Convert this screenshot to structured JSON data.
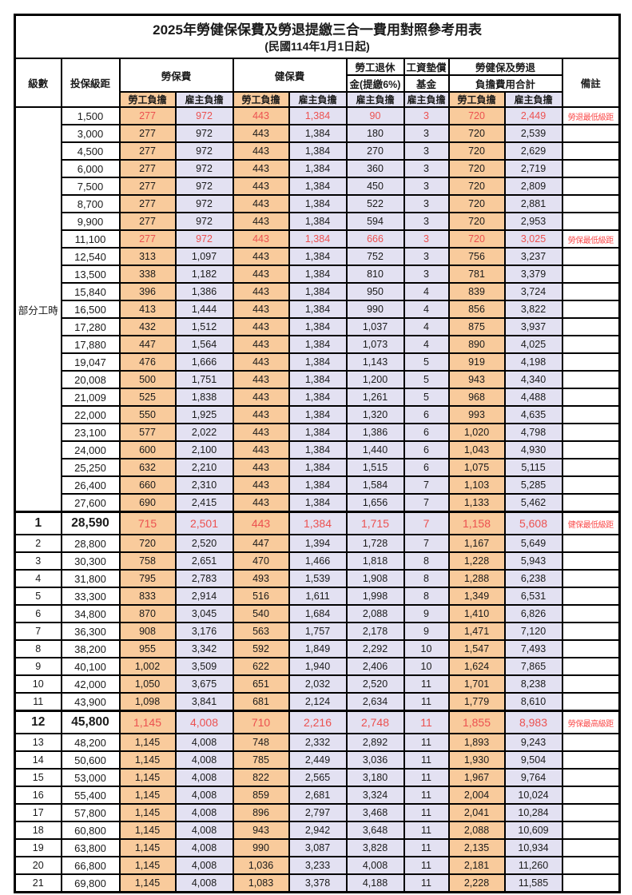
{
  "title": "2025年勞健保保費及勞退提繳三合一費用對照參考用表",
  "subtitle": "(民國114年1月1日起)",
  "part_time_label": "部分工時",
  "columns": {
    "level": "級數",
    "bracket": "投保級距",
    "labor_ins": "勞保費",
    "health_ins": "健保費",
    "pension_line1": "勞工退休",
    "pension_line2": "金(提繳6%)",
    "wage_fund_line1": "工資墊償",
    "wage_fund_line2": "基金",
    "total_line1": "勞健保及勞退",
    "total_line2": "負擔費用合計",
    "remark": "備註",
    "employee": "勞工負擔",
    "employer": "雇主負擔"
  },
  "colors": {
    "employee_bg": "#F9CB9C",
    "employer_bg": "#E3E1F2",
    "highlight_red": "#EC5150",
    "remark_red": "#FA4B4B",
    "border": "#000000"
  },
  "rows": [
    {
      "level": "",
      "bracket": "1,500",
      "v": [
        "277",
        "972",
        "443",
        "1,384",
        "90",
        "3",
        "720",
        "2,449"
      ],
      "remark": "勞退最低級距",
      "red": true,
      "big": false
    },
    {
      "level": "",
      "bracket": "3,000",
      "v": [
        "277",
        "972",
        "443",
        "1,384",
        "180",
        "3",
        "720",
        "2,539"
      ],
      "remark": "",
      "red": false,
      "big": false
    },
    {
      "level": "",
      "bracket": "4,500",
      "v": [
        "277",
        "972",
        "443",
        "1,384",
        "270",
        "3",
        "720",
        "2,629"
      ],
      "remark": "",
      "red": false,
      "big": false
    },
    {
      "level": "",
      "bracket": "6,000",
      "v": [
        "277",
        "972",
        "443",
        "1,384",
        "360",
        "3",
        "720",
        "2,719"
      ],
      "remark": "",
      "red": false,
      "big": false
    },
    {
      "level": "",
      "bracket": "7,500",
      "v": [
        "277",
        "972",
        "443",
        "1,384",
        "450",
        "3",
        "720",
        "2,809"
      ],
      "remark": "",
      "red": false,
      "big": false
    },
    {
      "level": "",
      "bracket": "8,700",
      "v": [
        "277",
        "972",
        "443",
        "1,384",
        "522",
        "3",
        "720",
        "2,881"
      ],
      "remark": "",
      "red": false,
      "big": false
    },
    {
      "level": "",
      "bracket": "9,900",
      "v": [
        "277",
        "972",
        "443",
        "1,384",
        "594",
        "3",
        "720",
        "2,953"
      ],
      "remark": "",
      "red": false,
      "big": false
    },
    {
      "level": "",
      "bracket": "11,100",
      "v": [
        "277",
        "972",
        "443",
        "1,384",
        "666",
        "3",
        "720",
        "3,025"
      ],
      "remark": "勞保最低級距",
      "red": true,
      "big": false
    },
    {
      "level": "",
      "bracket": "12,540",
      "v": [
        "313",
        "1,097",
        "443",
        "1,384",
        "752",
        "3",
        "756",
        "3,237"
      ],
      "remark": "",
      "red": false,
      "big": false
    },
    {
      "level": "",
      "bracket": "13,500",
      "v": [
        "338",
        "1,182",
        "443",
        "1,384",
        "810",
        "3",
        "781",
        "3,379"
      ],
      "remark": "",
      "red": false,
      "big": false
    },
    {
      "level": "",
      "bracket": "15,840",
      "v": [
        "396",
        "1,386",
        "443",
        "1,384",
        "950",
        "4",
        "839",
        "3,724"
      ],
      "remark": "",
      "red": false,
      "big": false
    },
    {
      "level": "",
      "bracket": "16,500",
      "v": [
        "413",
        "1,444",
        "443",
        "1,384",
        "990",
        "4",
        "856",
        "3,822"
      ],
      "remark": "",
      "red": false,
      "big": false
    },
    {
      "level": "",
      "bracket": "17,280",
      "v": [
        "432",
        "1,512",
        "443",
        "1,384",
        "1,037",
        "4",
        "875",
        "3,937"
      ],
      "remark": "",
      "red": false,
      "big": false
    },
    {
      "level": "",
      "bracket": "17,880",
      "v": [
        "447",
        "1,564",
        "443",
        "1,384",
        "1,073",
        "4",
        "890",
        "4,025"
      ],
      "remark": "",
      "red": false,
      "big": false
    },
    {
      "level": "",
      "bracket": "19,047",
      "v": [
        "476",
        "1,666",
        "443",
        "1,384",
        "1,143",
        "5",
        "919",
        "4,198"
      ],
      "remark": "",
      "red": false,
      "big": false
    },
    {
      "level": "",
      "bracket": "20,008",
      "v": [
        "500",
        "1,751",
        "443",
        "1,384",
        "1,200",
        "5",
        "943",
        "4,340"
      ],
      "remark": "",
      "red": false,
      "big": false
    },
    {
      "level": "",
      "bracket": "21,009",
      "v": [
        "525",
        "1,838",
        "443",
        "1,384",
        "1,261",
        "5",
        "968",
        "4,488"
      ],
      "remark": "",
      "red": false,
      "big": false
    },
    {
      "level": "",
      "bracket": "22,000",
      "v": [
        "550",
        "1,925",
        "443",
        "1,384",
        "1,320",
        "6",
        "993",
        "4,635"
      ],
      "remark": "",
      "red": false,
      "big": false
    },
    {
      "level": "",
      "bracket": "23,100",
      "v": [
        "577",
        "2,022",
        "443",
        "1,384",
        "1,386",
        "6",
        "1,020",
        "4,798"
      ],
      "remark": "",
      "red": false,
      "big": false
    },
    {
      "level": "",
      "bracket": "24,000",
      "v": [
        "600",
        "2,100",
        "443",
        "1,384",
        "1,440",
        "6",
        "1,043",
        "4,930"
      ],
      "remark": "",
      "red": false,
      "big": false
    },
    {
      "level": "",
      "bracket": "25,250",
      "v": [
        "632",
        "2,210",
        "443",
        "1,384",
        "1,515",
        "6",
        "1,075",
        "5,115"
      ],
      "remark": "",
      "red": false,
      "big": false
    },
    {
      "level": "",
      "bracket": "26,400",
      "v": [
        "660",
        "2,310",
        "443",
        "1,384",
        "1,584",
        "7",
        "1,103",
        "5,285"
      ],
      "remark": "",
      "red": false,
      "big": false
    },
    {
      "level": "",
      "bracket": "27,600",
      "v": [
        "690",
        "2,415",
        "443",
        "1,384",
        "1,656",
        "7",
        "1,133",
        "5,462"
      ],
      "remark": "",
      "red": false,
      "big": false
    },
    {
      "level": "1",
      "bracket": "28,590",
      "v": [
        "715",
        "2,501",
        "443",
        "1,384",
        "1,715",
        "7",
        "1,158",
        "5,608"
      ],
      "remark": "健保最低級距",
      "red": true,
      "big": true
    },
    {
      "level": "2",
      "bracket": "28,800",
      "v": [
        "720",
        "2,520",
        "447",
        "1,394",
        "1,728",
        "7",
        "1,167",
        "5,649"
      ],
      "remark": "",
      "red": false,
      "big": false
    },
    {
      "level": "3",
      "bracket": "30,300",
      "v": [
        "758",
        "2,651",
        "470",
        "1,466",
        "1,818",
        "8",
        "1,228",
        "5,943"
      ],
      "remark": "",
      "red": false,
      "big": false
    },
    {
      "level": "4",
      "bracket": "31,800",
      "v": [
        "795",
        "2,783",
        "493",
        "1,539",
        "1,908",
        "8",
        "1,288",
        "6,238"
      ],
      "remark": "",
      "red": false,
      "big": false
    },
    {
      "level": "5",
      "bracket": "33,300",
      "v": [
        "833",
        "2,914",
        "516",
        "1,611",
        "1,998",
        "8",
        "1,349",
        "6,531"
      ],
      "remark": "",
      "red": false,
      "big": false
    },
    {
      "level": "6",
      "bracket": "34,800",
      "v": [
        "870",
        "3,045",
        "540",
        "1,684",
        "2,088",
        "9",
        "1,410",
        "6,826"
      ],
      "remark": "",
      "red": false,
      "big": false
    },
    {
      "level": "7",
      "bracket": "36,300",
      "v": [
        "908",
        "3,176",
        "563",
        "1,757",
        "2,178",
        "9",
        "1,471",
        "7,120"
      ],
      "remark": "",
      "red": false,
      "big": false
    },
    {
      "level": "8",
      "bracket": "38,200",
      "v": [
        "955",
        "3,342",
        "592",
        "1,849",
        "2,292",
        "10",
        "1,547",
        "7,493"
      ],
      "remark": "",
      "red": false,
      "big": false
    },
    {
      "level": "9",
      "bracket": "40,100",
      "v": [
        "1,002",
        "3,509",
        "622",
        "1,940",
        "2,406",
        "10",
        "1,624",
        "7,865"
      ],
      "remark": "",
      "red": false,
      "big": false
    },
    {
      "level": "10",
      "bracket": "42,000",
      "v": [
        "1,050",
        "3,675",
        "651",
        "2,032",
        "2,520",
        "11",
        "1,701",
        "8,238"
      ],
      "remark": "",
      "red": false,
      "big": false
    },
    {
      "level": "11",
      "bracket": "43,900",
      "v": [
        "1,098",
        "3,841",
        "681",
        "2,124",
        "2,634",
        "11",
        "1,779",
        "8,610"
      ],
      "remark": "",
      "red": false,
      "big": false
    },
    {
      "level": "12",
      "bracket": "45,800",
      "v": [
        "1,145",
        "4,008",
        "710",
        "2,216",
        "2,748",
        "11",
        "1,855",
        "8,983"
      ],
      "remark": "勞保最高級距",
      "red": true,
      "big": true
    },
    {
      "level": "13",
      "bracket": "48,200",
      "v": [
        "1,145",
        "4,008",
        "748",
        "2,332",
        "2,892",
        "11",
        "1,893",
        "9,243"
      ],
      "remark": "",
      "red": false,
      "big": false
    },
    {
      "level": "14",
      "bracket": "50,600",
      "v": [
        "1,145",
        "4,008",
        "785",
        "2,449",
        "3,036",
        "11",
        "1,930",
        "9,504"
      ],
      "remark": "",
      "red": false,
      "big": false
    },
    {
      "level": "15",
      "bracket": "53,000",
      "v": [
        "1,145",
        "4,008",
        "822",
        "2,565",
        "3,180",
        "11",
        "1,967",
        "9,764"
      ],
      "remark": "",
      "red": false,
      "big": false
    },
    {
      "level": "16",
      "bracket": "55,400",
      "v": [
        "1,145",
        "4,008",
        "859",
        "2,681",
        "3,324",
        "11",
        "2,004",
        "10,024"
      ],
      "remark": "",
      "red": false,
      "big": false
    },
    {
      "level": "17",
      "bracket": "57,800",
      "v": [
        "1,145",
        "4,008",
        "896",
        "2,797",
        "3,468",
        "11",
        "2,041",
        "10,284"
      ],
      "remark": "",
      "red": false,
      "big": false
    },
    {
      "level": "18",
      "bracket": "60,800",
      "v": [
        "1,145",
        "4,008",
        "943",
        "2,942",
        "3,648",
        "11",
        "2,088",
        "10,609"
      ],
      "remark": "",
      "red": false,
      "big": false
    },
    {
      "level": "19",
      "bracket": "63,800",
      "v": [
        "1,145",
        "4,008",
        "990",
        "3,087",
        "3,828",
        "11",
        "2,135",
        "10,934"
      ],
      "remark": "",
      "red": false,
      "big": false
    },
    {
      "level": "20",
      "bracket": "66,800",
      "v": [
        "1,145",
        "4,008",
        "1,036",
        "3,233",
        "4,008",
        "11",
        "2,181",
        "11,260"
      ],
      "remark": "",
      "red": false,
      "big": false
    },
    {
      "level": "21",
      "bracket": "69,800",
      "v": [
        "1,145",
        "4,008",
        "1,083",
        "3,378",
        "4,188",
        "11",
        "2,228",
        "11,585"
      ],
      "remark": "",
      "red": false,
      "big": false
    }
  ]
}
